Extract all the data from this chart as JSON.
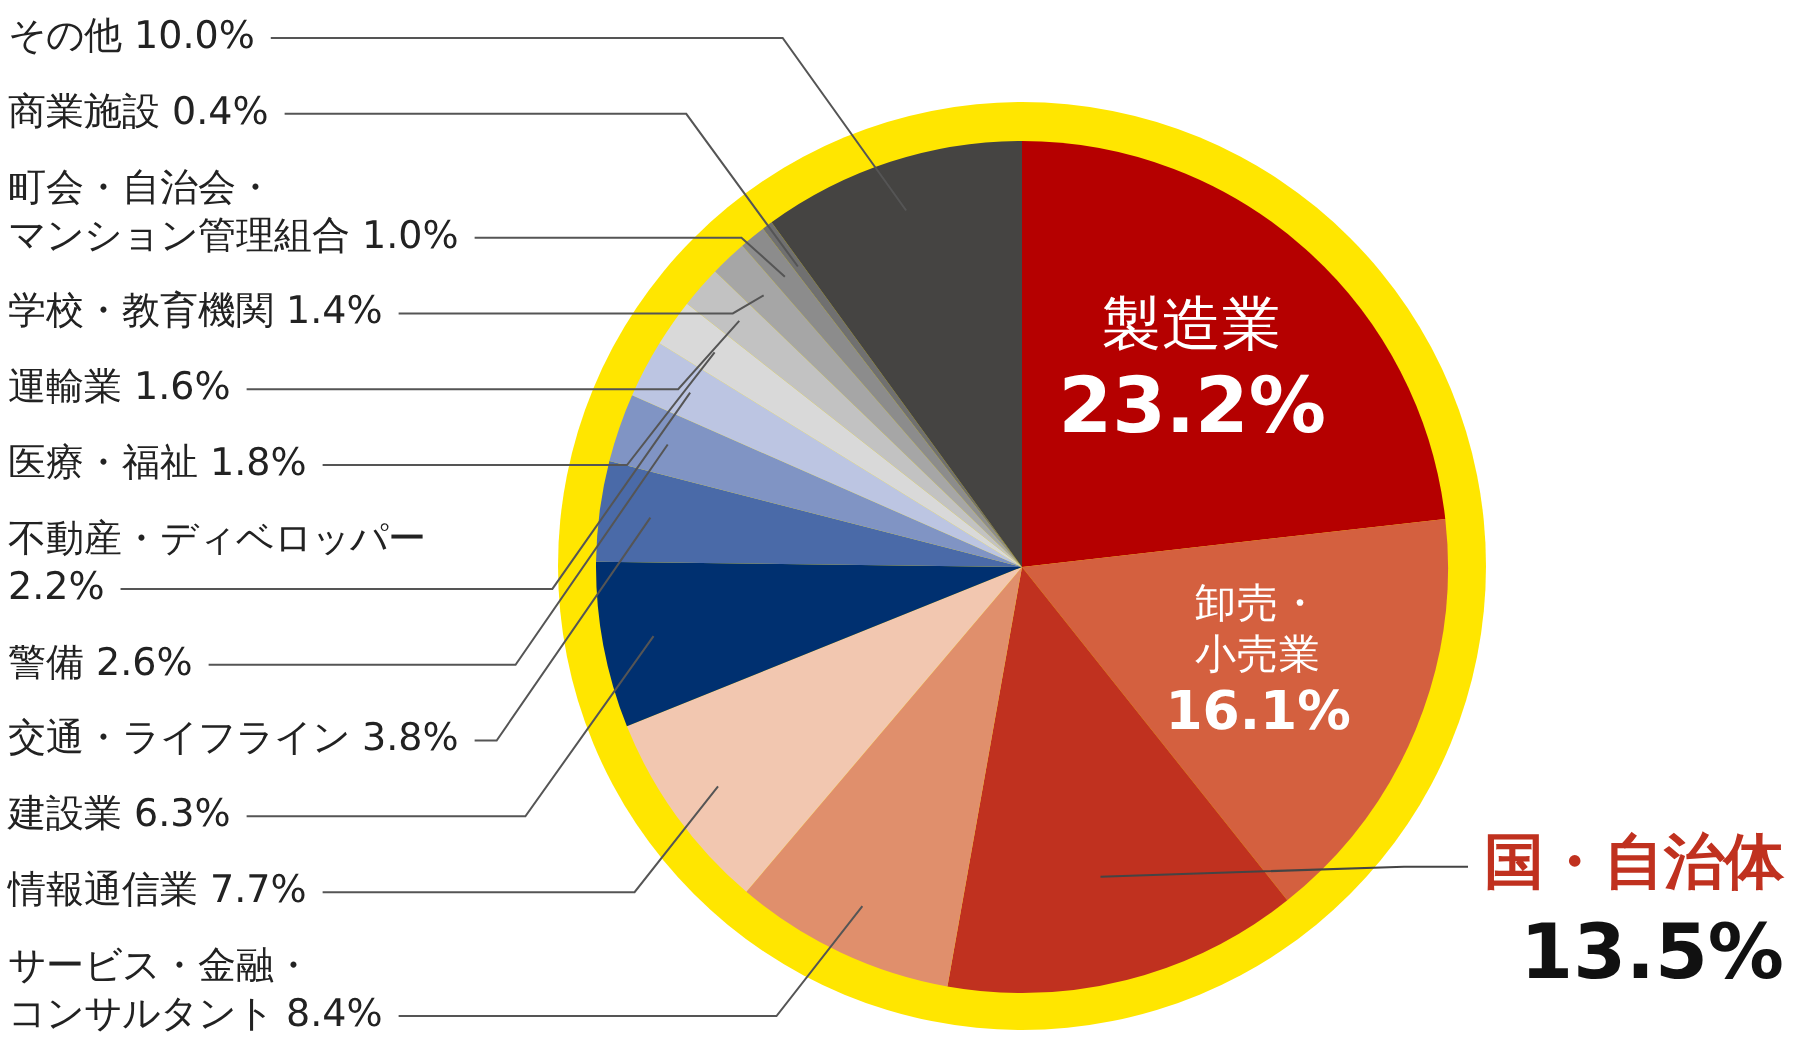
{
  "chart_data": {
    "type": "pie",
    "categories": [
      "製造業",
      "卸売・小売業",
      "国・自治体",
      "サービス・金融・コンサルタント",
      "情報通信業",
      "建設業",
      "交通・ライフライン",
      "警備",
      "不動産・ディベロッパー",
      "医療・福祉",
      "運輸業",
      "学校・教育機関",
      "町会・自治会・マンション管理組合",
      "商業施設",
      "その他"
    ],
    "values": [
      23.2,
      16.1,
      13.5,
      8.4,
      7.7,
      6.3,
      3.8,
      2.6,
      2.2,
      1.8,
      1.6,
      1.4,
      1.0,
      0.4,
      10.0
    ],
    "colors": [
      "#b50000",
      "#d4603f",
      "#c0311f",
      "#e08f6c",
      "#f2c7b0",
      "#003070",
      "#4a6aa8",
      "#8094c4",
      "#bcc5e2",
      "#d9d9d9",
      "#c2c2c2",
      "#a6a6a6",
      "#8c8c8c",
      "#707070",
      "#454442"
    ],
    "value_labels": [
      "23.2%",
      "16.1%",
      "13.5%",
      "8.4%",
      "7.7%",
      "6.3%",
      "3.8%",
      "2.6%",
      "2.2%",
      "1.8%",
      "1.6%",
      "1.4%",
      "1.0%",
      "0.4%",
      "10.0%"
    ]
  }
}
